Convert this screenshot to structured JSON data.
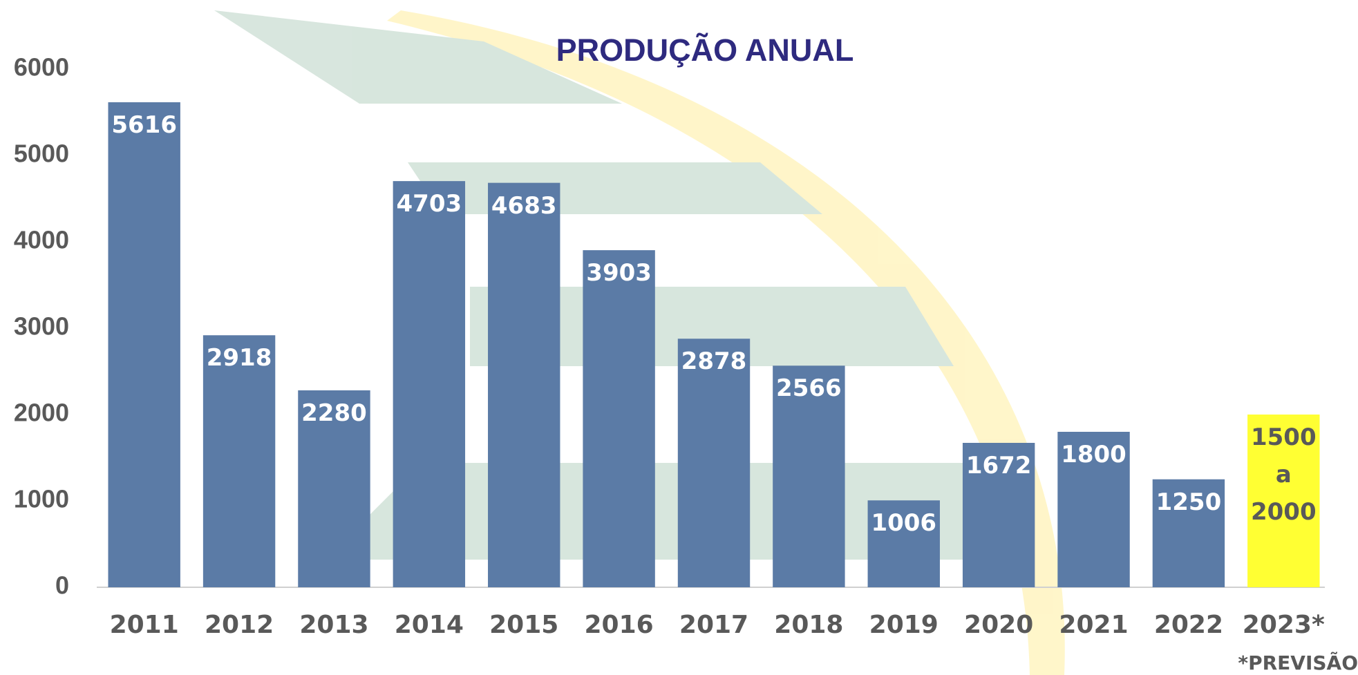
{
  "chart_data": {
    "type": "bar",
    "title": "PRODUÇÃO ANUAL",
    "categories": [
      "2011",
      "2012",
      "2013",
      "2014",
      "2015",
      "2016",
      "2017",
      "2018",
      "2019",
      "2020",
      "2021",
      "2022",
      "2023*"
    ],
    "values": [
      5616,
      2918,
      2280,
      4703,
      4683,
      3903,
      2878,
      2566,
      1006,
      1672,
      1800,
      1250,
      2000
    ],
    "value_labels": [
      "5616",
      "2918",
      "2280",
      "4703",
      "4683",
      "3903",
      "2878",
      "2566",
      "1006",
      "1672",
      "1800",
      "1250",
      "1500 a 2000"
    ],
    "colors": [
      "#5b7ba6",
      "#5b7ba6",
      "#5b7ba6",
      "#5b7ba6",
      "#5b7ba6",
      "#5b7ba6",
      "#5b7ba6",
      "#5b7ba6",
      "#5b7ba6",
      "#5b7ba6",
      "#5b7ba6",
      "#5b7ba6",
      "#ffff33"
    ],
    "label_colors": [
      "#ffffff",
      "#ffffff",
      "#ffffff",
      "#ffffff",
      "#ffffff",
      "#ffffff",
      "#ffffff",
      "#ffffff",
      "#ffffff",
      "#ffffff",
      "#ffffff",
      "#ffffff",
      "#595959"
    ],
    "ylim": [
      0,
      6000
    ],
    "yticks": [
      0,
      1000,
      2000,
      3000,
      4000,
      5000,
      6000
    ],
    "grid": false,
    "footnote": "*PREVISÃO"
  }
}
